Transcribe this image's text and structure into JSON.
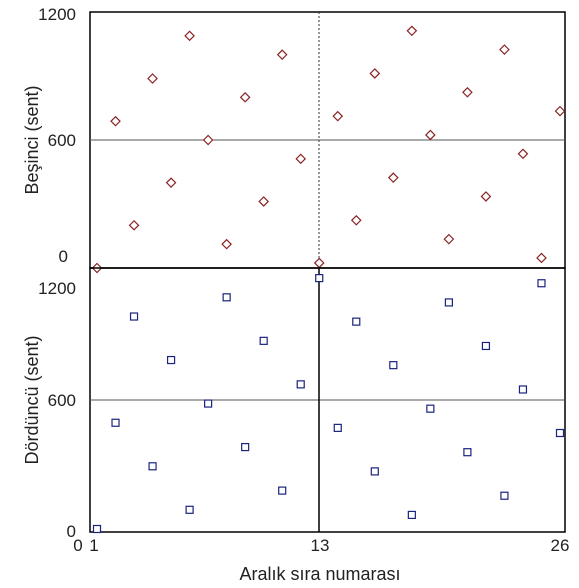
{
  "chart_data": [
    {
      "type": "scatter",
      "ylabel": "Beşinci (sent)",
      "xlim": [
        1,
        26
      ],
      "ylim": [
        0,
        1200
      ],
      "y_ticks": [
        "0",
        "600",
        "1200"
      ],
      "marker": "diamond",
      "marker_color": "#8b2323",
      "grid": "reference lines at x=13 and y=600",
      "series": [
        {
          "x": [
            1,
            2,
            3,
            4,
            5,
            6,
            7,
            8,
            9,
            10,
            11,
            12,
            13,
            14,
            15,
            16,
            17,
            18,
            19,
            20,
            21,
            22,
            23,
            24,
            25,
            26
          ],
          "y": [
            0,
            702,
            204,
            906,
            408,
            1110,
            612,
            114,
            816,
            318,
            1020,
            522,
            24,
            726,
            228,
            930,
            432,
            1134,
            636,
            138,
            840,
            342,
            1044,
            546,
            48,
            750
          ]
        }
      ]
    },
    {
      "type": "scatter",
      "xlabel": "Aralık sıra numarası",
      "ylabel": "Dördüncü (sent)",
      "xlim": [
        1,
        26
      ],
      "ylim": [
        0,
        1200
      ],
      "x_ticks": [
        "0",
        "1",
        "13",
        "26"
      ],
      "y_ticks": [
        "0",
        "600",
        "1200"
      ],
      "marker": "square",
      "marker_color": "#1a237e",
      "grid": "reference lines at x=13 and y=600",
      "series": [
        {
          "x": [
            1,
            2,
            3,
            4,
            5,
            6,
            7,
            8,
            9,
            10,
            11,
            12,
            13,
            14,
            15,
            16,
            17,
            18,
            19,
            20,
            21,
            22,
            23,
            24,
            25,
            26
          ],
          "y": [
            0,
            498,
            996,
            294,
            792,
            90,
            588,
            1086,
            384,
            882,
            180,
            678,
            1176,
            474,
            972,
            270,
            768,
            66,
            564,
            1062,
            360,
            858,
            156,
            654,
            1152,
            450
          ]
        }
      ]
    }
  ]
}
